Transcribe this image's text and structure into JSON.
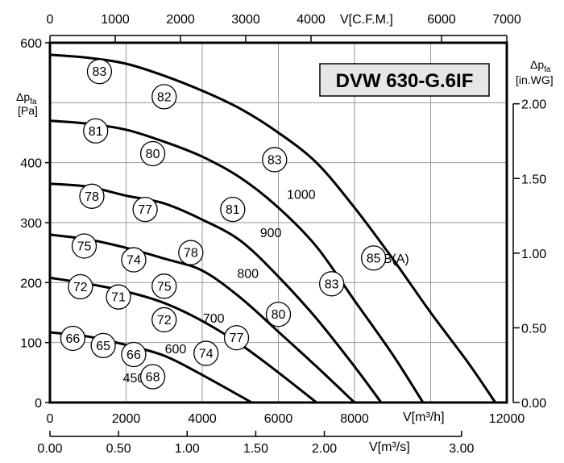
{
  "chart_data": {
    "type": "line",
    "title": "DVW 630-G.6IF",
    "x_bottom": {
      "label": "V[m³/h]",
      "range": [
        0,
        12000
      ],
      "ticks": [
        "0",
        "2000",
        "4000",
        "6000",
        "8000",
        "12000"
      ]
    },
    "x_top": {
      "label": "V[C.F.M.]",
      "range": [
        0,
        7000
      ],
      "ticks": [
        "0",
        "1000",
        "2000",
        "3000",
        "4000",
        "6000",
        "7000"
      ]
    },
    "x_bottom2": {
      "label": "V[m³/s]",
      "range": [
        0,
        3.33
      ],
      "ticks": [
        "0.00",
        "0.50",
        "1.00",
        "1.50",
        "2.00",
        "3.00"
      ]
    },
    "y_left": {
      "label": "Δp",
      "label_sub": "fa",
      "unit": "[Pa]",
      "range": [
        0,
        600
      ],
      "ticks": [
        "0",
        "100",
        "200",
        "300",
        "400",
        "600"
      ]
    },
    "y_right": {
      "label": "Δp",
      "label_sub": "fa",
      "unit": "[in.WG]",
      "ticks": [
        "0.00",
        "0.50",
        "1.00",
        "1.50",
        "2.00"
      ]
    },
    "grid": true,
    "series": [
      {
        "name": "450",
        "points": [
          [
            0,
            117
          ],
          [
            1000,
            110
          ],
          [
            2000,
            96
          ],
          [
            3000,
            78
          ],
          [
            4000,
            46
          ],
          [
            5300,
            0
          ]
        ]
      },
      {
        "name": "600",
        "points": [
          [
            0,
            208
          ],
          [
            1000,
            198
          ],
          [
            2000,
            185
          ],
          [
            3000,
            166
          ],
          [
            4000,
            136
          ],
          [
            5000,
            97
          ],
          [
            6000,
            50
          ],
          [
            7000,
            0
          ]
        ]
      },
      {
        "name": "700",
        "points": [
          [
            0,
            280
          ],
          [
            1000,
            272
          ],
          [
            2000,
            258
          ],
          [
            3000,
            240
          ],
          [
            4000,
            220
          ],
          [
            5000,
            175
          ],
          [
            6000,
            118
          ],
          [
            7000,
            60
          ],
          [
            8000,
            0
          ]
        ]
      },
      {
        "name": "800",
        "points": [
          [
            0,
            365
          ],
          [
            1000,
            360
          ],
          [
            2000,
            345
          ],
          [
            3000,
            332
          ],
          [
            4000,
            305
          ],
          [
            5000,
            270
          ],
          [
            6000,
            210
          ],
          [
            7000,
            140
          ],
          [
            8000,
            60
          ],
          [
            8700,
            0
          ]
        ]
      },
      {
        "name": "900",
        "points": [
          [
            0,
            470
          ],
          [
            1000,
            465
          ],
          [
            2000,
            455
          ],
          [
            3000,
            435
          ],
          [
            4000,
            410
          ],
          [
            5000,
            375
          ],
          [
            6000,
            325
          ],
          [
            7000,
            260
          ],
          [
            8000,
            170
          ],
          [
            9000,
            80
          ],
          [
            9800,
            0
          ]
        ]
      },
      {
        "name": "1000",
        "points": [
          [
            0,
            580
          ],
          [
            1000,
            575
          ],
          [
            2000,
            565
          ],
          [
            3000,
            545
          ],
          [
            4000,
            520
          ],
          [
            5000,
            490
          ],
          [
            6000,
            450
          ],
          [
            7000,
            400
          ],
          [
            8000,
            325
          ],
          [
            9000,
            240
          ],
          [
            10000,
            150
          ],
          [
            11000,
            65
          ],
          [
            11700,
            0
          ]
        ]
      }
    ],
    "sound_labels": [
      {
        "value": "83",
        "x": 1300,
        "y": 552
      },
      {
        "value": "82",
        "x": 3000,
        "y": 510
      },
      {
        "value": "83",
        "x": 5900,
        "y": 405
      },
      {
        "value": "85",
        "x": 8500,
        "y": 241
      },
      {
        "value": "81",
        "x": 1200,
        "y": 453
      },
      {
        "value": "80",
        "x": 2700,
        "y": 415
      },
      {
        "value": "81",
        "x": 4800,
        "y": 322
      },
      {
        "value": "83",
        "x": 7400,
        "y": 198
      },
      {
        "value": "78",
        "x": 1100,
        "y": 344
      },
      {
        "value": "77",
        "x": 2500,
        "y": 322
      },
      {
        "value": "78",
        "x": 3700,
        "y": 250
      },
      {
        "value": "80",
        "x": 6000,
        "y": 147
      },
      {
        "value": "75",
        "x": 900,
        "y": 261
      },
      {
        "value": "74",
        "x": 2200,
        "y": 238
      },
      {
        "value": "75",
        "x": 3000,
        "y": 194
      },
      {
        "value": "77",
        "x": 4900,
        "y": 108
      },
      {
        "value": "72",
        "x": 800,
        "y": 193
      },
      {
        "value": "71",
        "x": 1800,
        "y": 176
      },
      {
        "value": "72",
        "x": 3000,
        "y": 138
      },
      {
        "value": "74",
        "x": 4100,
        "y": 82
      },
      {
        "value": "66",
        "x": 600,
        "y": 107
      },
      {
        "value": "65",
        "x": 1400,
        "y": 95
      },
      {
        "value": "66",
        "x": 2200,
        "y": 80
      },
      {
        "value": "68",
        "x": 2700,
        "y": 43
      }
    ],
    "annotations": [
      {
        "text": "1000",
        "x": 6600,
        "y": 348
      },
      {
        "text": "900",
        "x": 5800,
        "y": 284
      },
      {
        "text": "800",
        "x": 5200,
        "y": 216
      },
      {
        "text": "700",
        "x": 4300,
        "y": 141
      },
      {
        "text": "600",
        "x": 3300,
        "y": 90
      },
      {
        "text": "450",
        "x": 2200,
        "y": 42
      },
      {
        "text": "dB(A)",
        "x": 9000,
        "y": 241
      }
    ]
  }
}
